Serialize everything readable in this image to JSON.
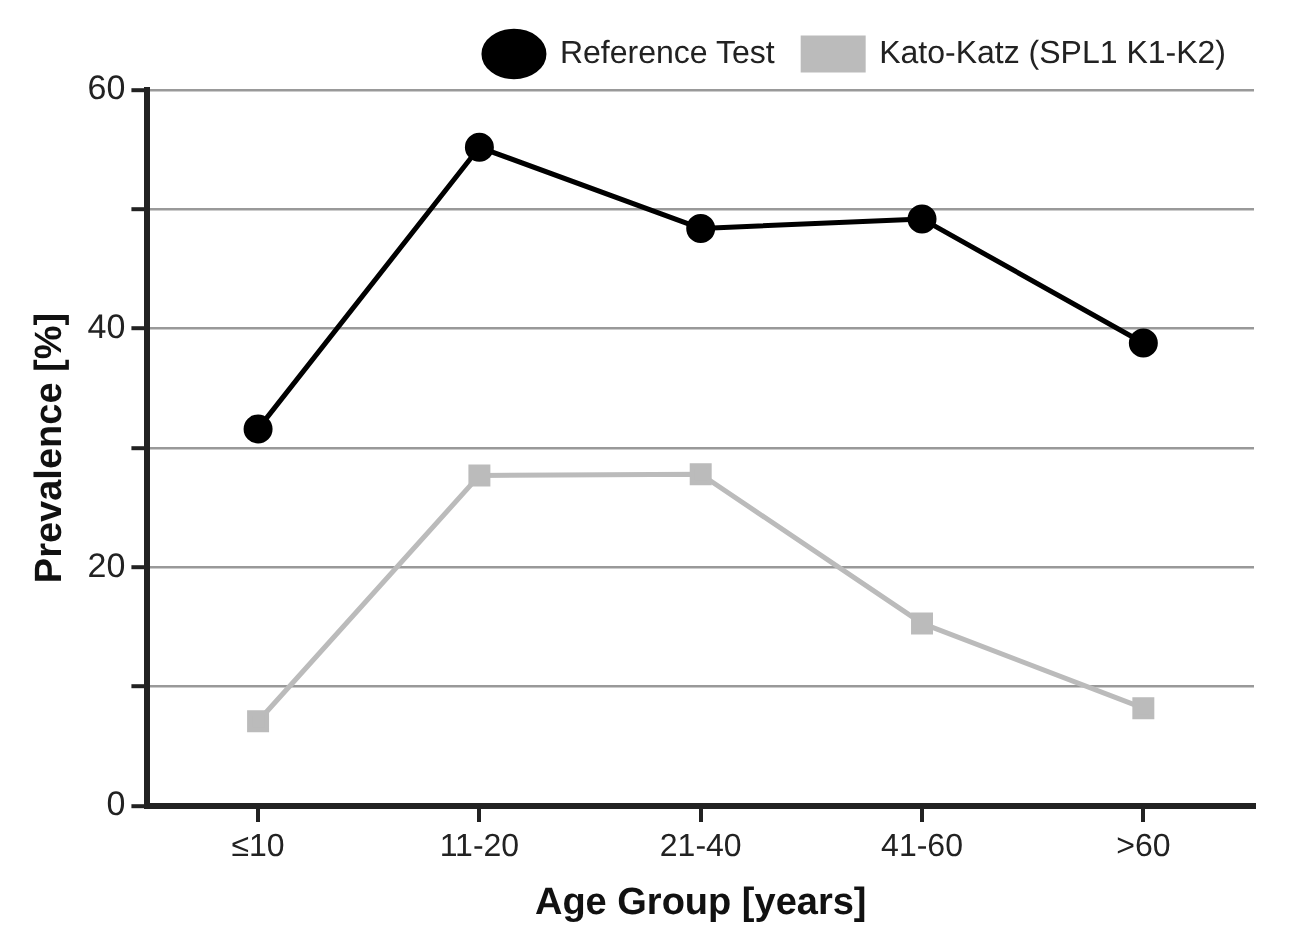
{
  "chart_data": {
    "type": "line",
    "xlabel": "Age Group [years]",
    "ylabel": "Prevalence [%]",
    "categories": [
      "≤10",
      "11-20",
      "21-40",
      "41-60",
      ">60"
    ],
    "series": [
      {
        "name": "Reference Test",
        "color": "#000000",
        "marker": "circle",
        "values": [
          31.6,
          55.2,
          48.4,
          49.2,
          38.8
        ]
      },
      {
        "name": "Kato-Katz (SPL1 K1-K2)",
        "color": "#bbbbbb",
        "marker": "square",
        "values": [
          7.1,
          27.7,
          27.8,
          15.3,
          8.2
        ]
      }
    ],
    "ylim": [
      0,
      60
    ],
    "yticks": [
      0,
      {
        "value": 10,
        "label": null
      },
      20,
      {
        "value": 30,
        "label": null
      },
      40,
      {
        "value": 50,
        "label": null
      },
      60
    ],
    "grid": "y",
    "legend": "top right"
  }
}
